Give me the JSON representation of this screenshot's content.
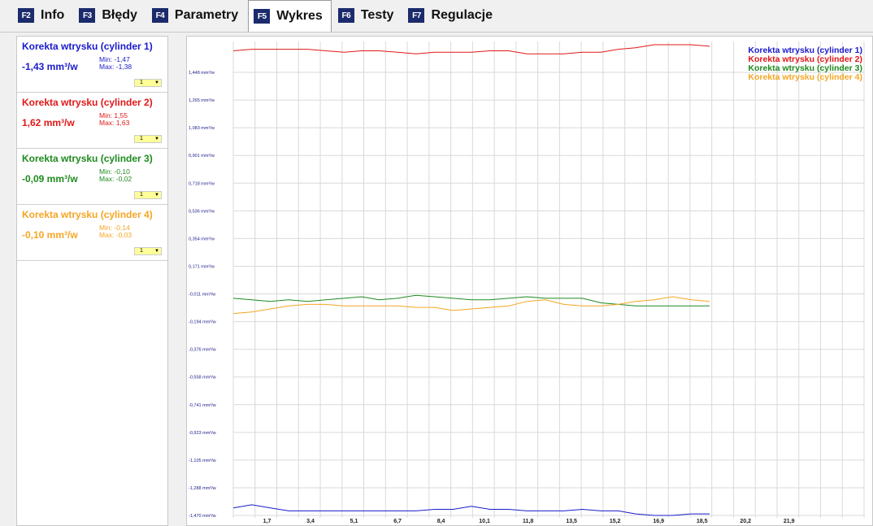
{
  "tabs": [
    {
      "key": "F2",
      "label": "Info"
    },
    {
      "key": "F3",
      "label": "Błędy"
    },
    {
      "key": "F4",
      "label": "Parametry"
    },
    {
      "key": "F5",
      "label": "Wykres"
    },
    {
      "key": "F6",
      "label": "Testy"
    },
    {
      "key": "F7",
      "label": "Regulacje"
    }
  ],
  "active_tab": "Wykres",
  "sensors": [
    {
      "title": "Korekta wtrysku (cylinder 1)",
      "value": "-1,43 mm³/w",
      "min": "Min: -1,47",
      "max": "Max: -1,38",
      "select": "1",
      "color": "#1a1acc"
    },
    {
      "title": "Korekta wtrysku (cylinder 2)",
      "value": "1,62 mm³/w",
      "min": "Min: 1,55",
      "max": "Max: 1,63",
      "select": "1",
      "color": "#e01818"
    },
    {
      "title": "Korekta wtrysku (cylinder 3)",
      "value": "-0,09 mm³/w",
      "min": "Min: -0,10",
      "max": "Max: -0,02",
      "select": "1",
      "color": "#1f8a1f"
    },
    {
      "title": "Korekta wtrysku (cylinder 4)",
      "value": "-0,10 mm³/w",
      "min": "Min: -0,14",
      "max": "Max: -0,03",
      "select": "1",
      "color": "#f5a623"
    }
  ],
  "chart_data": {
    "type": "line",
    "title": "",
    "xlabel": "",
    "ylabel": "",
    "grid": true,
    "legend_position": "top-right",
    "ylim": [
      -1.47,
      1.63
    ],
    "xlim": [
      0,
      29
    ],
    "x_ticks": [
      "1,7",
      "3,4",
      "5,1",
      "6,7",
      "8,4",
      "10,1",
      "11,8",
      "13,5",
      "15,2",
      "16,9",
      "18,5",
      "20,2",
      "21,9"
    ],
    "y_ticks": [
      "1,448 mm³/w",
      "1,265 mm³/w",
      "1,083 mm³/w",
      "0,901 mm³/w",
      "0,718 mm³/w",
      "0,536 mm³/w",
      "0,354 mm³/w",
      "0,171 mm³/w",
      "-0,011 mm³/w",
      "-0,194 mm³/w",
      "-0,376 mm³/w",
      "-0,558 mm³/w",
      "-0,741 mm³/w",
      "-0,923 mm³/w",
      "-1,105 mm³/w",
      "-1,288 mm³/w",
      "-1,470 mm³/w"
    ],
    "x": [
      0,
      0.85,
      1.7,
      2.55,
      3.4,
      4.25,
      5.1,
      5.9,
      6.7,
      7.55,
      8.4,
      9.25,
      10.1,
      10.95,
      11.8,
      12.65,
      13.5,
      14.35,
      15.2,
      16.05,
      16.9,
      17.7,
      18.5,
      19.35,
      20.2,
      21.05,
      21.9
    ],
    "series": [
      {
        "name": "Korekta wtrysku (cylinder 1)",
        "color": "#1a1acc",
        "values": [
          -1.42,
          -1.4,
          -1.42,
          -1.44,
          -1.44,
          -1.44,
          -1.44,
          -1.44,
          -1.44,
          -1.44,
          -1.44,
          -1.43,
          -1.43,
          -1.41,
          -1.43,
          -1.43,
          -1.44,
          -1.44,
          -1.44,
          -1.43,
          -1.44,
          -1.44,
          -1.46,
          -1.47,
          -1.47,
          -1.46,
          -1.46
        ]
      },
      {
        "name": "Korekta wtrysku (cylinder 2)",
        "color": "#e01818",
        "values": [
          1.59,
          1.6,
          1.6,
          1.6,
          1.6,
          1.59,
          1.58,
          1.59,
          1.59,
          1.58,
          1.57,
          1.58,
          1.58,
          1.58,
          1.59,
          1.59,
          1.57,
          1.57,
          1.57,
          1.58,
          1.58,
          1.6,
          1.61,
          1.63,
          1.63,
          1.63,
          1.62
        ]
      },
      {
        "name": "Korekta wtrysku (cylinder 3)",
        "color": "#1f8a1f",
        "values": [
          -0.04,
          -0.05,
          -0.06,
          -0.05,
          -0.06,
          -0.05,
          -0.04,
          -0.03,
          -0.05,
          -0.04,
          -0.02,
          -0.03,
          -0.04,
          -0.05,
          -0.05,
          -0.04,
          -0.03,
          -0.04,
          -0.04,
          -0.04,
          -0.07,
          -0.08,
          -0.09,
          -0.09,
          -0.09,
          -0.09,
          -0.09
        ]
      },
      {
        "name": "Korekta wtrysku (cylinder 4)",
        "color": "#f5a623",
        "values": [
          -0.14,
          -0.13,
          -0.11,
          -0.09,
          -0.08,
          -0.08,
          -0.09,
          -0.09,
          -0.09,
          -0.09,
          -0.1,
          -0.1,
          -0.12,
          -0.11,
          -0.1,
          -0.09,
          -0.06,
          -0.05,
          -0.08,
          -0.09,
          -0.09,
          -0.08,
          -0.06,
          -0.05,
          -0.03,
          -0.05,
          -0.06
        ]
      }
    ]
  }
}
